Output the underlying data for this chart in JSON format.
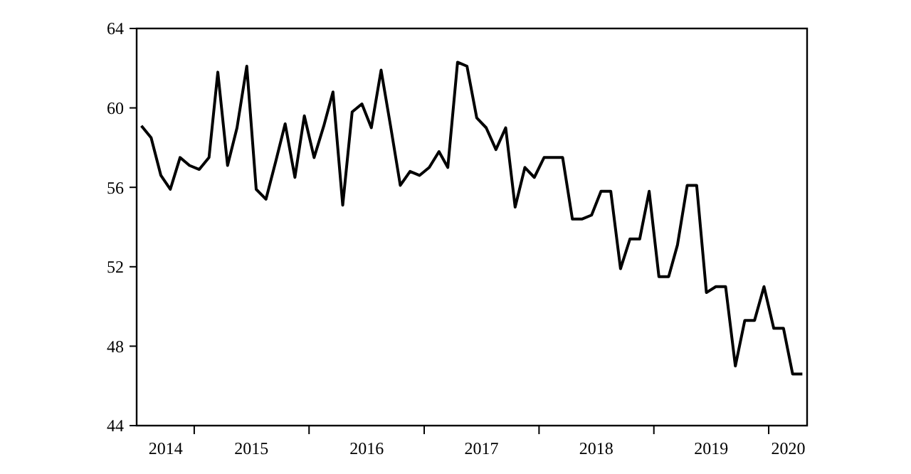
{
  "chart_data": {
    "type": "line",
    "x": [
      "2014-07",
      "2014-08",
      "2014-09",
      "2014-10",
      "2014-11",
      "2014-12",
      "2015-01",
      "2015-02",
      "2015-03",
      "2015-04",
      "2015-05",
      "2015-06",
      "2015-07",
      "2015-08",
      "2015-09",
      "2015-10",
      "2015-11",
      "2015-12",
      "2016-01",
      "2016-02",
      "2016-03",
      "2016-04",
      "2016-05",
      "2016-06",
      "2016-07",
      "2016-08",
      "2016-09",
      "2016-10",
      "2016-11",
      "2016-12",
      "2017-01",
      "2017-02",
      "2017-03",
      "2017-04",
      "2017-05",
      "2017-06",
      "2017-07",
      "2017-08",
      "2017-09",
      "2017-10",
      "2017-11",
      "2017-12",
      "2018-01",
      "2018-02",
      "2018-03",
      "2018-04",
      "2018-05",
      "2018-06",
      "2018-07",
      "2018-08",
      "2018-09",
      "2018-10",
      "2018-11",
      "2018-12",
      "2019-01",
      "2019-02",
      "2019-03",
      "2019-04",
      "2019-05",
      "2019-06",
      "2019-07",
      "2019-08",
      "2019-09",
      "2019-10",
      "2019-11",
      "2019-12",
      "2020-01",
      "2020-02",
      "2020-03",
      "2020-04"
    ],
    "series": [
      {
        "color": "#000000",
        "values": [
          59.1,
          58.5,
          56.6,
          55.9,
          57.5,
          57.1,
          56.9,
          57.5,
          61.8,
          57.1,
          59.0,
          62.1,
          55.9,
          55.4,
          57.3,
          59.2,
          56.5,
          59.6,
          57.5,
          59.1,
          60.8,
          55.1,
          59.8,
          60.2,
          59.0,
          61.9,
          59.0,
          56.1,
          56.8,
          56.6,
          57.0,
          57.8,
          57.0,
          62.3,
          62.1,
          59.5,
          59.0,
          57.9,
          59.0,
          55.0,
          57.0,
          56.5,
          57.5,
          57.5,
          57.5,
          54.4,
          54.4,
          54.6,
          55.8,
          55.8,
          51.9,
          53.4,
          53.4,
          55.8,
          51.5,
          51.5,
          53.1,
          56.1,
          56.1,
          50.7,
          51.0,
          51.0,
          47.0,
          49.3,
          49.3,
          51.0,
          48.9,
          48.9,
          46.6,
          46.6
        ]
      }
    ],
    "xlim": [
      "2014-06-16",
      "2020-04-16"
    ],
    "xticks": [
      {
        "value": "2014-09-16",
        "label": "2014"
      },
      {
        "value": "2014-12-16",
        "label": null
      },
      {
        "value": "2015-06-16",
        "label": "2015"
      },
      {
        "value": "2015-12-16",
        "label": null
      },
      {
        "value": "2016-06-16",
        "label": "2016"
      },
      {
        "value": "2016-12-16",
        "label": null
      },
      {
        "value": "2017-06-16",
        "label": "2017"
      },
      {
        "value": "2017-12-16",
        "label": null
      },
      {
        "value": "2018-06-16",
        "label": "2018"
      },
      {
        "value": "2018-12-16",
        "label": null
      },
      {
        "value": "2019-06-16",
        "label": "2019"
      },
      {
        "value": "2019-12-16",
        "label": null
      },
      {
        "value": "2020-02-16",
        "label": "2020"
      }
    ],
    "ylim": [
      44,
      64
    ],
    "yticks": [
      44,
      48,
      52,
      56,
      60,
      64
    ],
    "grid": false,
    "marker": "none",
    "line_style": "solid"
  }
}
